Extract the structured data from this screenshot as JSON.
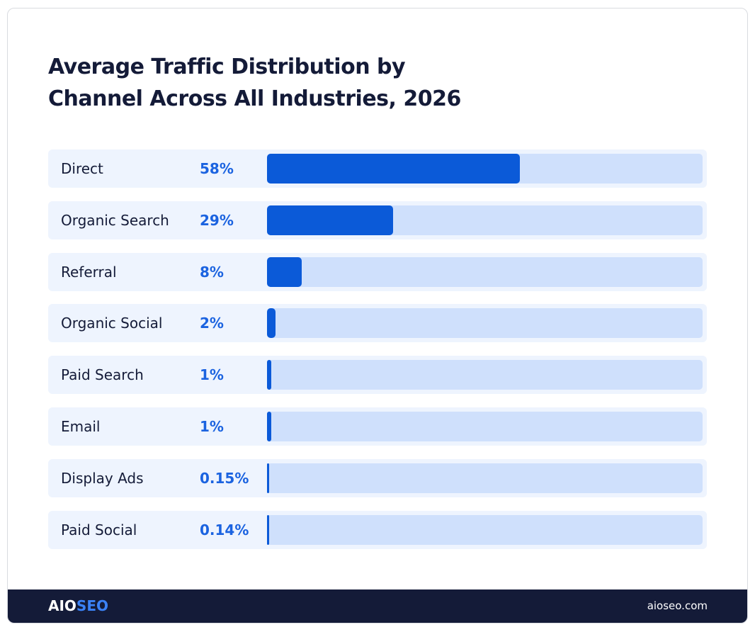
{
  "chart_data": {
    "type": "bar",
    "orientation": "horizontal",
    "title": "Average Traffic Distribution by Channel Across All Industries, 2026",
    "categories": [
      "Direct",
      "Organic Search",
      "Referral",
      "Organic Social",
      "Paid Search",
      "Email",
      "Display Ads",
      "Paid Social"
    ],
    "values": [
      58,
      29,
      8,
      2,
      1,
      1,
      0.15,
      0.14
    ],
    "value_labels": [
      "58%",
      "29%",
      "8%",
      "2%",
      "1%",
      "1%",
      "0.15%",
      "0.14%"
    ],
    "color": "#0b5ad8",
    "track_color": "#cfe0fc",
    "xlim": [
      0,
      100
    ]
  },
  "footer": {
    "brand_main": "AIO",
    "brand_accent": "SEO",
    "url": "aioseo.com"
  }
}
